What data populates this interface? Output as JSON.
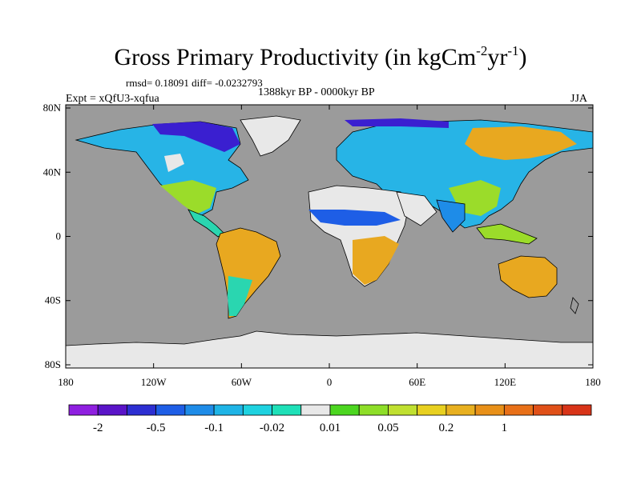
{
  "title": {
    "main": "Gross Primary Productivity (in kgCm",
    "exp1": "-2",
    "mid": "yr",
    "exp2": "-1",
    "close": ")"
  },
  "stats": "rmsd= 0.18091 diff= -0.0232793",
  "experiment": "Expt = xQfU3-xqfua",
  "period": "1388kyr BP - 0000kyr BP",
  "season": "JJA",
  "map": {
    "ocean_color": "#9b9b9b",
    "lat_ticks": [
      {
        "value": 80,
        "label": "80N"
      },
      {
        "value": 40,
        "label": "40N"
      },
      {
        "value": 0,
        "label": "0"
      },
      {
        "value": -40,
        "label": "40S"
      },
      {
        "value": -80,
        "label": "80S"
      }
    ],
    "lon_ticks": [
      {
        "value": -180,
        "label": "180"
      },
      {
        "value": -120,
        "label": "120W"
      },
      {
        "value": -60,
        "label": "60W"
      },
      {
        "value": 0,
        "label": "0"
      },
      {
        "value": 60,
        "label": "60E"
      },
      {
        "value": 120,
        "label": "120E"
      },
      {
        "value": 180,
        "label": "180"
      }
    ]
  },
  "colorbar": {
    "colors": [
      "#8f1fe0",
      "#5a14c8",
      "#2d2fd2",
      "#1e5ee6",
      "#1e8ce8",
      "#1eb4e6",
      "#1ed2e0",
      "#1ee0b8",
      "#e8e8e8",
      "#4cd620",
      "#8ede28",
      "#c0e030",
      "#e8d020",
      "#e8b020",
      "#e89018",
      "#e87018",
      "#e05018",
      "#d83418"
    ],
    "labels": [
      {
        "boundary": 1,
        "text": "-2"
      },
      {
        "boundary": 3,
        "text": "-0.5"
      },
      {
        "boundary": 5,
        "text": "-0.1"
      },
      {
        "boundary": 7,
        "text": "-0.02"
      },
      {
        "boundary": 9,
        "text": "0.01"
      },
      {
        "boundary": 11,
        "text": "0.05"
      },
      {
        "boundary": 13,
        "text": "0.2"
      },
      {
        "boundary": 15,
        "text": "1"
      }
    ]
  }
}
